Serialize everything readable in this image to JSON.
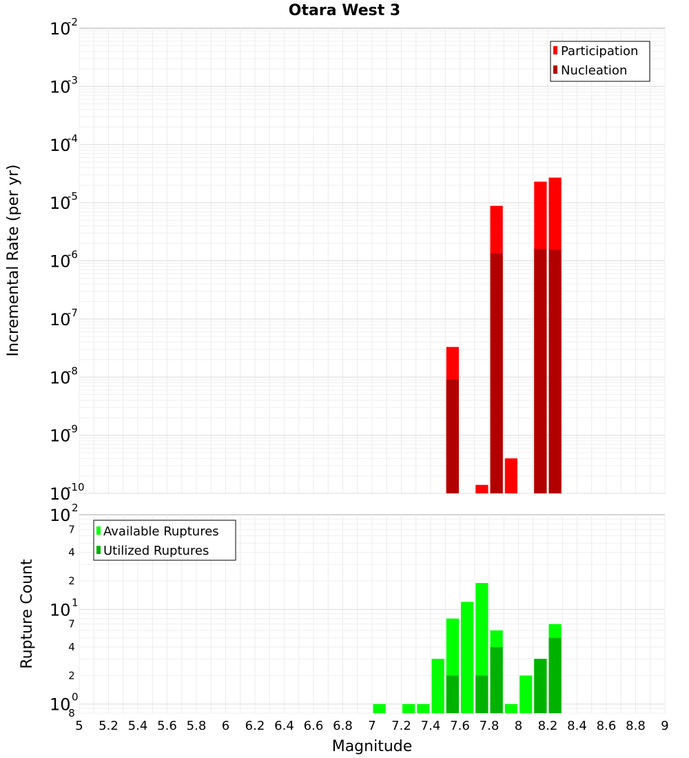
{
  "chart_data": [
    {
      "type": "bar",
      "title": "Otara West 3",
      "ylabel": "Incremental Rate (per yr)",
      "xlabel": "",
      "yscale": "log",
      "ylim": [
        1e-10,
        0.01
      ],
      "xlim": [
        5,
        9
      ],
      "y_ticks": [
        {
          "base": "10",
          "exp": "-10",
          "value": 1e-10
        },
        {
          "base": "10",
          "exp": "-9",
          "value": 1e-09
        },
        {
          "base": "10",
          "exp": "-8",
          "value": 1e-08
        },
        {
          "base": "10",
          "exp": "-7",
          "value": 1e-07
        },
        {
          "base": "10",
          "exp": "-6",
          "value": 1e-06
        },
        {
          "base": "10",
          "exp": "-5",
          "value": 1e-05
        },
        {
          "base": "10",
          "exp": "-4",
          "value": 0.0001
        },
        {
          "base": "10",
          "exp": "-3",
          "value": 0.001
        },
        {
          "base": "10",
          "exp": "-2",
          "value": 0.01
        }
      ],
      "legend": {
        "position": "top-right"
      },
      "series": [
        {
          "name": "Participation",
          "color": "#ff0000",
          "x": [
            7.55,
            7.75,
            7.85,
            7.95,
            8.15,
            8.25
          ],
          "values": [
            3.3e-08,
            1.4e-10,
            8.8e-06,
            4e-10,
            2.3e-05,
            2.7e-05
          ]
        },
        {
          "name": "Nucleation",
          "color": "#b20000",
          "x": [
            7.55,
            7.85,
            8.15,
            8.25
          ],
          "values": [
            9e-09,
            1.35e-06,
            1.6e-06,
            1.55e-06
          ]
        }
      ],
      "grid": true
    },
    {
      "type": "bar",
      "ylabel": "Rupture Count",
      "xlabel": "Magnitude",
      "yscale": "log",
      "ylim": [
        0.8,
        100
      ],
      "xlim": [
        5,
        9
      ],
      "x_ticks": [
        "5",
        "5.2",
        "5.4",
        "5.6",
        "5.8",
        "6",
        "6.2",
        "6.4",
        "6.6",
        "6.8",
        "7",
        "7.2",
        "7.4",
        "7.6",
        "7.8",
        "8",
        "8.2",
        "8.4",
        "8.6",
        "8.8",
        "9"
      ],
      "y_major_ticks": [
        {
          "base": "10",
          "exp": "0",
          "value": 1
        },
        {
          "base": "10",
          "exp": "1",
          "value": 10
        },
        {
          "base": "10",
          "exp": "2",
          "value": 100
        }
      ],
      "y_minor_labels": [
        {
          "label": "8",
          "value": 0.8
        },
        {
          "label": "2",
          "value": 2
        },
        {
          "label": "4",
          "value": 4
        },
        {
          "label": "7",
          "value": 7
        },
        {
          "label": "2",
          "value": 20
        },
        {
          "label": "4",
          "value": 40
        },
        {
          "label": "7",
          "value": 70
        }
      ],
      "legend": {
        "position": "top-left"
      },
      "series": [
        {
          "name": "Available Ruptures",
          "color": "#00ff00",
          "x": [
            7.05,
            7.25,
            7.35,
            7.45,
            7.55,
            7.65,
            7.75,
            7.85,
            7.95,
            8.05,
            8.15,
            8.25
          ],
          "values": [
            1,
            1,
            1,
            3,
            8,
            12,
            19,
            6,
            1,
            2,
            3,
            7
          ]
        },
        {
          "name": "Utilized Ruptures",
          "color": "#00b200",
          "x": [
            7.55,
            7.75,
            7.85,
            8.15,
            8.25
          ],
          "values": [
            2,
            2,
            4,
            3,
            5
          ]
        }
      ],
      "grid": true
    }
  ]
}
